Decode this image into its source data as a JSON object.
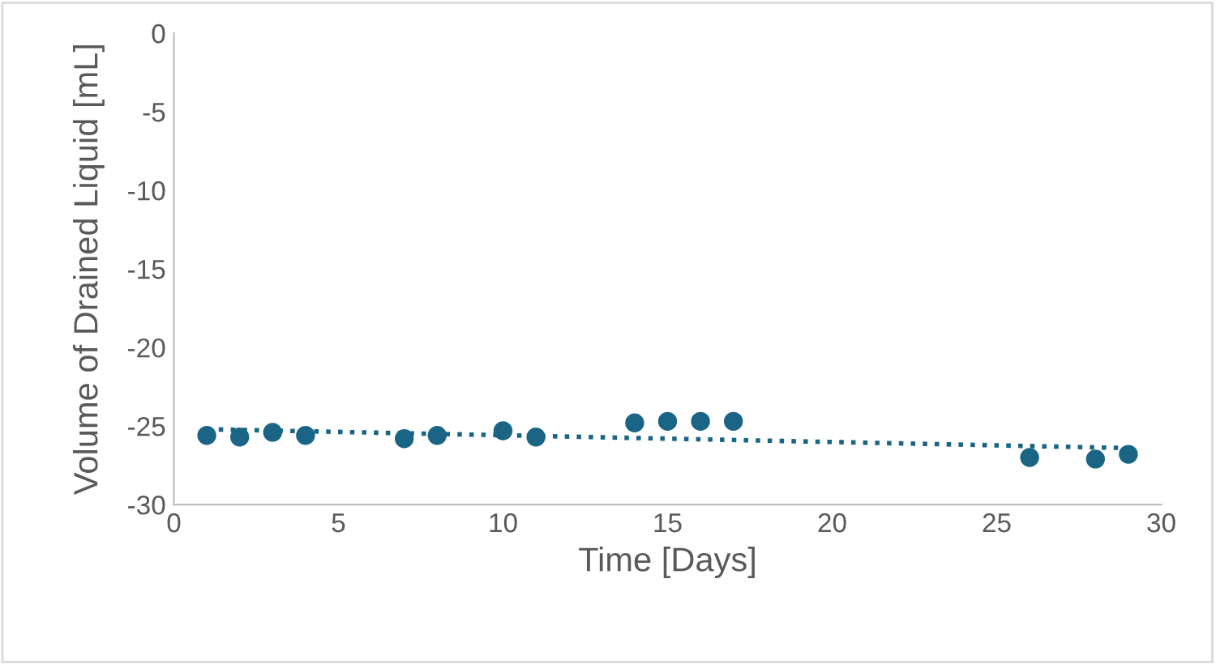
{
  "chart_data": {
    "type": "scatter",
    "xlabel": "Time [Days]",
    "ylabel": "Volume of Drained Liquid [mL]",
    "xlim": [
      0,
      30
    ],
    "xticks": [
      0,
      5,
      10,
      15,
      20,
      25,
      30
    ],
    "ylim": [
      -30,
      0
    ],
    "yticks": [
      -30,
      -25,
      -20,
      -15,
      -10,
      -5,
      0
    ],
    "grid": false,
    "series": [
      {
        "marker": "circle",
        "color": "#1a6585",
        "x": [
          1,
          2,
          3,
          4,
          7,
          8,
          10,
          11,
          14,
          15,
          16,
          17,
          26,
          28,
          29
        ],
        "values": [
          -25.6,
          -25.7,
          -25.4,
          -25.6,
          -25.8,
          -25.6,
          -25.3,
          -25.7,
          -24.8,
          -24.7,
          -24.7,
          -24.7,
          -27.0,
          -27.1,
          -26.8
        ]
      },
      {
        "type": "line",
        "color": "#1a6585",
        "line_style": "dotted",
        "marker": "none",
        "x": [
          1,
          29
        ],
        "values": [
          -25.2,
          -26.4
        ]
      }
    ]
  }
}
